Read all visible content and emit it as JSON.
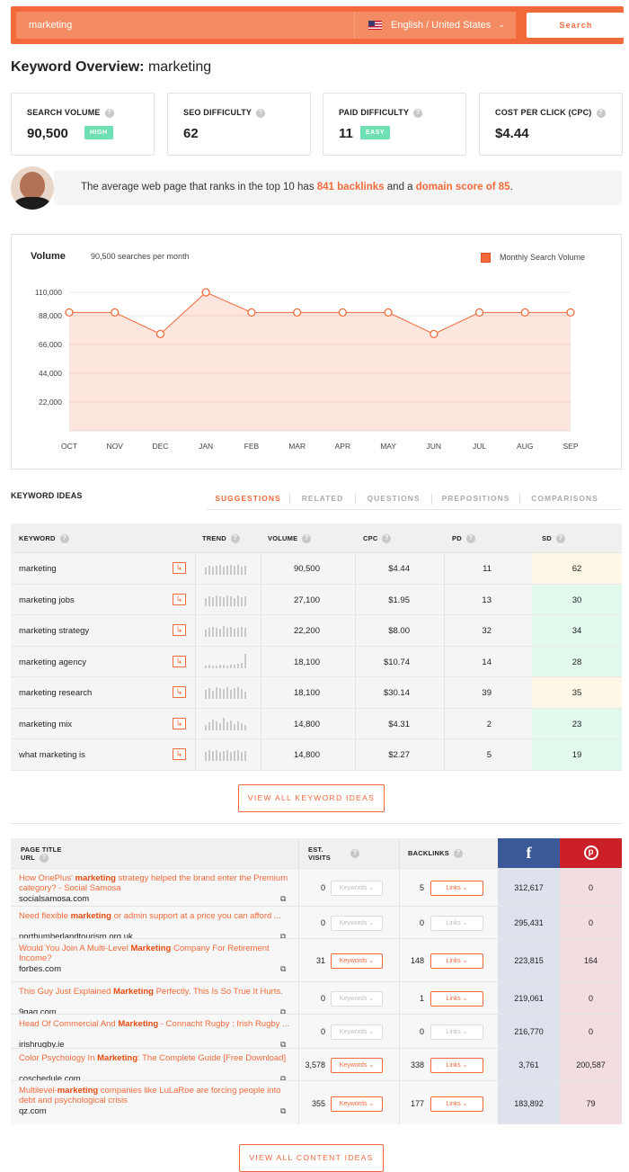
{
  "search": {
    "query": "marketing",
    "language": "English / United States",
    "button": "Search"
  },
  "overview": {
    "title_prefix": "Keyword Overview:",
    "keyword": "marketing"
  },
  "metrics": [
    {
      "label": "SEARCH VOLUME",
      "value": "90,500",
      "badge": "HIGH"
    },
    {
      "label": "SEO DIFFICULTY",
      "value": "62",
      "badge": ""
    },
    {
      "label": "PAID DIFFICULTY",
      "value": "11",
      "badge": "EASY"
    },
    {
      "label": "COST PER CLICK (CPC)",
      "value": "$4.44",
      "badge": ""
    }
  ],
  "info": {
    "text_a": "The average web page that ranks in the top 10 has ",
    "backlinks": "841 backlinks",
    "text_b": " and a ",
    "domain_score": "domain score of 85",
    "text_c": "."
  },
  "volume_panel": {
    "title": "Volume",
    "subtitle": "90,500 searches per month",
    "legend": "Monthly Search Volume"
  },
  "chart_data": {
    "type": "area",
    "x": [
      "OCT",
      "NOV",
      "DEC",
      "JAN",
      "FEB",
      "MAR",
      "APR",
      "MAY",
      "JUN",
      "JUL",
      "AUG",
      "SEP"
    ],
    "series": [
      {
        "name": "Monthly Search Volume",
        "values": [
          90500,
          90500,
          74000,
          110000,
          90500,
          90500,
          90500,
          90500,
          74000,
          90500,
          90500,
          90500
        ]
      }
    ],
    "yticks": [
      "22,000",
      "44,000",
      "66,000",
      "88,000",
      "110,000"
    ],
    "ylim": [
      0,
      110000
    ],
    "grid": true,
    "legend_position": "top-right",
    "color": "#f26a3a"
  },
  "keyword_ideas": {
    "title": "KEYWORD IDEAS",
    "tabs": [
      "SUGGESTIONS",
      "RELATED",
      "QUESTIONS",
      "PREPOSITIONS",
      "COMPARISONS"
    ],
    "columns": [
      "KEYWORD",
      "TREND",
      "VOLUME",
      "CPC",
      "PD",
      "SD"
    ],
    "rows": [
      {
        "keyword": "marketing",
        "volume": "90,500",
        "cpc": "$4.44",
        "pd": "11",
        "sd": "62",
        "sd_color": "#fdf7e7",
        "trend": [
          8,
          10,
          9,
          10,
          11,
          9,
          10,
          11,
          10,
          11,
          9,
          10
        ]
      },
      {
        "keyword": "marketing jobs",
        "volume": "27,100",
        "cpc": "$1.95",
        "pd": "13",
        "sd": "30",
        "sd_color": "#e2faee",
        "trend": [
          9,
          11,
          10,
          12,
          11,
          10,
          12,
          11,
          9,
          12,
          10,
          11
        ]
      },
      {
        "keyword": "marketing strategy",
        "volume": "22,200",
        "cpc": "$8.00",
        "pd": "32",
        "sd": "34",
        "sd_color": "#e2faee",
        "trend": [
          8,
          10,
          11,
          10,
          9,
          12,
          10,
          11,
          9,
          10,
          11,
          10
        ]
      },
      {
        "keyword": "marketing agency",
        "volume": "18,100",
        "cpc": "$10.74",
        "pd": "14",
        "sd": "28",
        "sd_color": "#e2faee",
        "trend": [
          3,
          4,
          3,
          3,
          4,
          4,
          3,
          4,
          4,
          5,
          6,
          16
        ]
      },
      {
        "keyword": "marketing research",
        "volume": "18,100",
        "cpc": "$30.14",
        "pd": "39",
        "sd": "35",
        "sd_color": "#fdf7e7",
        "trend": [
          10,
          12,
          9,
          13,
          12,
          11,
          13,
          10,
          12,
          13,
          11,
          8
        ]
      },
      {
        "keyword": "marketing mix",
        "volume": "14,800",
        "cpc": "$4.31",
        "pd": "2",
        "sd": "23",
        "sd_color": "#e2faee",
        "trend": [
          6,
          9,
          12,
          10,
          8,
          14,
          9,
          11,
          7,
          10,
          8,
          6
        ]
      },
      {
        "keyword": "what marketing is",
        "volume": "14,800",
        "cpc": "$2.27",
        "pd": "5",
        "sd": "19",
        "sd_color": "#e2faee",
        "trend": [
          10,
          12,
          11,
          12,
          10,
          11,
          12,
          10,
          11,
          12,
          10,
          11
        ]
      }
    ],
    "view_all": "VIEW ALL KEYWORD IDEAS"
  },
  "content_ideas": {
    "col_page_title": "PAGE TITLE",
    "col_url": "URL",
    "col_visits": "EST. VISITS",
    "col_backlinks": "BACKLINKS",
    "facebook_icon": "facebook-icon",
    "pinterest_icon": "pinterest-icon",
    "keywords_btn": "Keywords",
    "links_btn": "Links",
    "rows": [
      {
        "title_a": "How OnePlus' ",
        "title_b": "marketing",
        "title_c": " strategy helped the brand enter the Premium category? - Social Samosa",
        "url": "socialsamosa.com",
        "visits": "0",
        "backlinks": "5",
        "facebook": "312,617",
        "pinterest": "0",
        "kw_active": false,
        "links_active": true
      },
      {
        "title_a": "Need flexible ",
        "title_b": "marketing",
        "title_c": " or admin support at a price you can afford ...",
        "url": "northumberlandtourism.org.uk",
        "visits": "0",
        "backlinks": "0",
        "facebook": "295,431",
        "pinterest": "0",
        "kw_active": false,
        "links_active": false
      },
      {
        "title_a": "Would You Join A Multi-Level ",
        "title_b": "Marketing",
        "title_c": " Company For Retirement Income?",
        "url": "forbes.com",
        "visits": "31",
        "backlinks": "148",
        "facebook": "223,815",
        "pinterest": "164",
        "kw_active": true,
        "links_active": true
      },
      {
        "title_a": "This Guy Just Explained ",
        "title_b": "Marketing",
        "title_c": " Perfectly. This Is So True It Hurts.",
        "url": "9gag.com",
        "visits": "0",
        "backlinks": "1",
        "facebook": "219,061",
        "pinterest": "0",
        "kw_active": false,
        "links_active": true
      },
      {
        "title_a": "Head Of Commercial And ",
        "title_b": "Marketing",
        "title_c": " - Connacht Rugby : Irish Rugby ...",
        "url": "irishrugby.ie",
        "visits": "0",
        "backlinks": "0",
        "facebook": "216,770",
        "pinterest": "0",
        "kw_active": false,
        "links_active": false
      },
      {
        "title_a": "Color Psychology In ",
        "title_b": "Marketing",
        "title_c": ": The Complete Guide [Free Download]",
        "url": "coschedule.com",
        "visits": "3,578",
        "backlinks": "338",
        "facebook": "3,761",
        "pinterest": "200,587",
        "kw_active": true,
        "links_active": true
      },
      {
        "title_a": "Multilevel-",
        "title_b": "marketing",
        "title_c": " companies like LuLaRoe are forcing people into debt and psychological crisis",
        "url": "qz.com",
        "visits": "355",
        "backlinks": "177",
        "facebook": "183,892",
        "pinterest": "79",
        "kw_active": true,
        "links_active": true
      }
    ],
    "view_all": "VIEW ALL CONTENT IDEAS"
  }
}
